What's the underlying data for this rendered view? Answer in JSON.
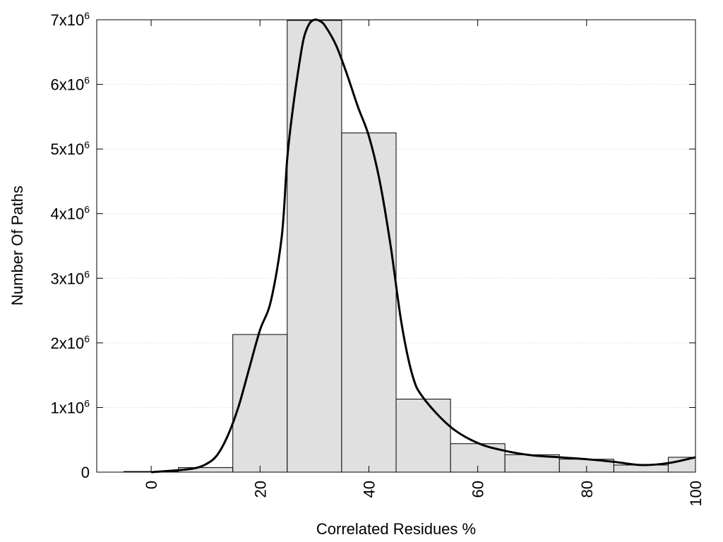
{
  "chart_data": {
    "type": "bar",
    "xlabel": "Correlated Residues %",
    "ylabel": "Number Of Paths",
    "xlim": [
      -10,
      100
    ],
    "ylim": [
      0,
      7000000
    ],
    "grid": true,
    "x_ticks": [
      {
        "value": 0,
        "label": "0"
      },
      {
        "value": 20,
        "label": "20"
      },
      {
        "value": 40,
        "label": "40"
      },
      {
        "value": 60,
        "label": "60"
      },
      {
        "value": 80,
        "label": "80"
      },
      {
        "value": 100,
        "label": "100"
      }
    ],
    "y_ticks": [
      {
        "value": 0,
        "base": "0",
        "exp": ""
      },
      {
        "value": 1000000,
        "base": "1x10",
        "exp": "6"
      },
      {
        "value": 2000000,
        "base": "2x10",
        "exp": "6"
      },
      {
        "value": 3000000,
        "base": "3x10",
        "exp": "6"
      },
      {
        "value": 4000000,
        "base": "4x10",
        "exp": "6"
      },
      {
        "value": 5000000,
        "base": "5x10",
        "exp": "6"
      },
      {
        "value": 6000000,
        "base": "6x10",
        "exp": "6"
      },
      {
        "value": 7000000,
        "base": "7x10",
        "exp": "6"
      }
    ],
    "bins": [
      {
        "from": -5,
        "to": 5,
        "value": 10000
      },
      {
        "from": 5,
        "to": 15,
        "value": 70000
      },
      {
        "from": 15,
        "to": 25,
        "value": 2130000
      },
      {
        "from": 25,
        "to": 35,
        "value": 6990000
      },
      {
        "from": 35,
        "to": 45,
        "value": 5250000
      },
      {
        "from": 45,
        "to": 55,
        "value": 1130000
      },
      {
        "from": 55,
        "to": 65,
        "value": 440000
      },
      {
        "from": 65,
        "to": 75,
        "value": 270000
      },
      {
        "from": 75,
        "to": 85,
        "value": 200000
      },
      {
        "from": 85,
        "to": 95,
        "value": 110000
      },
      {
        "from": 95,
        "to": 100,
        "value": 230000
      }
    ],
    "curve": {
      "x": [
        0,
        5,
        8,
        10,
        12,
        14,
        16,
        18,
        20,
        22,
        24,
        25,
        26,
        27,
        28,
        29,
        30,
        31,
        32,
        34,
        36,
        38,
        40,
        42,
        44,
        46,
        48,
        50,
        55,
        60,
        65,
        70,
        75,
        80,
        85,
        90,
        95,
        100
      ],
      "y": [
        0,
        30000,
        60000,
        120000,
        250000,
        550000,
        1000000,
        1600000,
        2200000,
        2650000,
        3650000,
        4850000,
        5600000,
        6200000,
        6700000,
        6930000,
        7000000,
        6980000,
        6900000,
        6600000,
        6150000,
        5650000,
        5200000,
        4500000,
        3500000,
        2300000,
        1500000,
        1150000,
        700000,
        450000,
        330000,
        260000,
        230000,
        200000,
        160000,
        110000,
        140000,
        230000
      ]
    }
  }
}
